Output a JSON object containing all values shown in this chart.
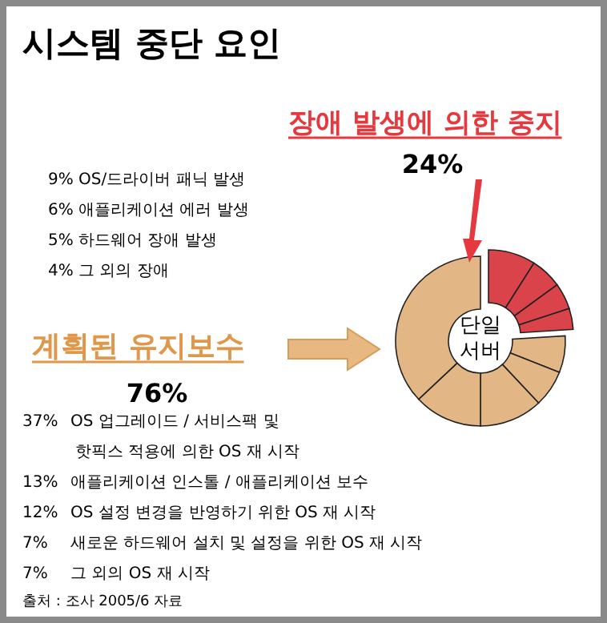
{
  "chart_data": {
    "type": "donut",
    "title": "시스템 중단 요인",
    "categories": [
      null,
      null,
      null,
      null,
      null,
      null,
      null,
      null,
      null
    ],
    "values": [
      9,
      6,
      5,
      4,
      7,
      7,
      12,
      13,
      37
    ],
    "colors": [
      "#db434b",
      "#db434b",
      "#db434b",
      "#db434b",
      "#e3b785",
      "#e3b785",
      "#e3b785",
      "#e3b785",
      "#e3b785"
    ],
    "annotations": [
      "장애 발생에 의한 중지",
      "24%",
      "9% OS/드라이버 패닉 발생",
      "6% 애플리케이션 에러 발생",
      "5% 하드웨어 장애 발생",
      "4% 그 외의 장애",
      "계획된 유지보수",
      "76%",
      "37% OS 업그레이드 / 서비스팩 및\n핫픽스 적용에 의한 OS 재 시작",
      "13% 애플리케이션 인스톨 / 애플리케이션 보수",
      "12% OS 설정 변경을 반영하기 위한 OS 재 시작",
      "7% 새로운 하드웨어 설치 및 설정을 위한 OS 재 시작",
      "7% 그 외의 OS 재 시작",
      "단일\n서버",
      "출처 :  조사 2005/6 자료"
    ]
  }
}
